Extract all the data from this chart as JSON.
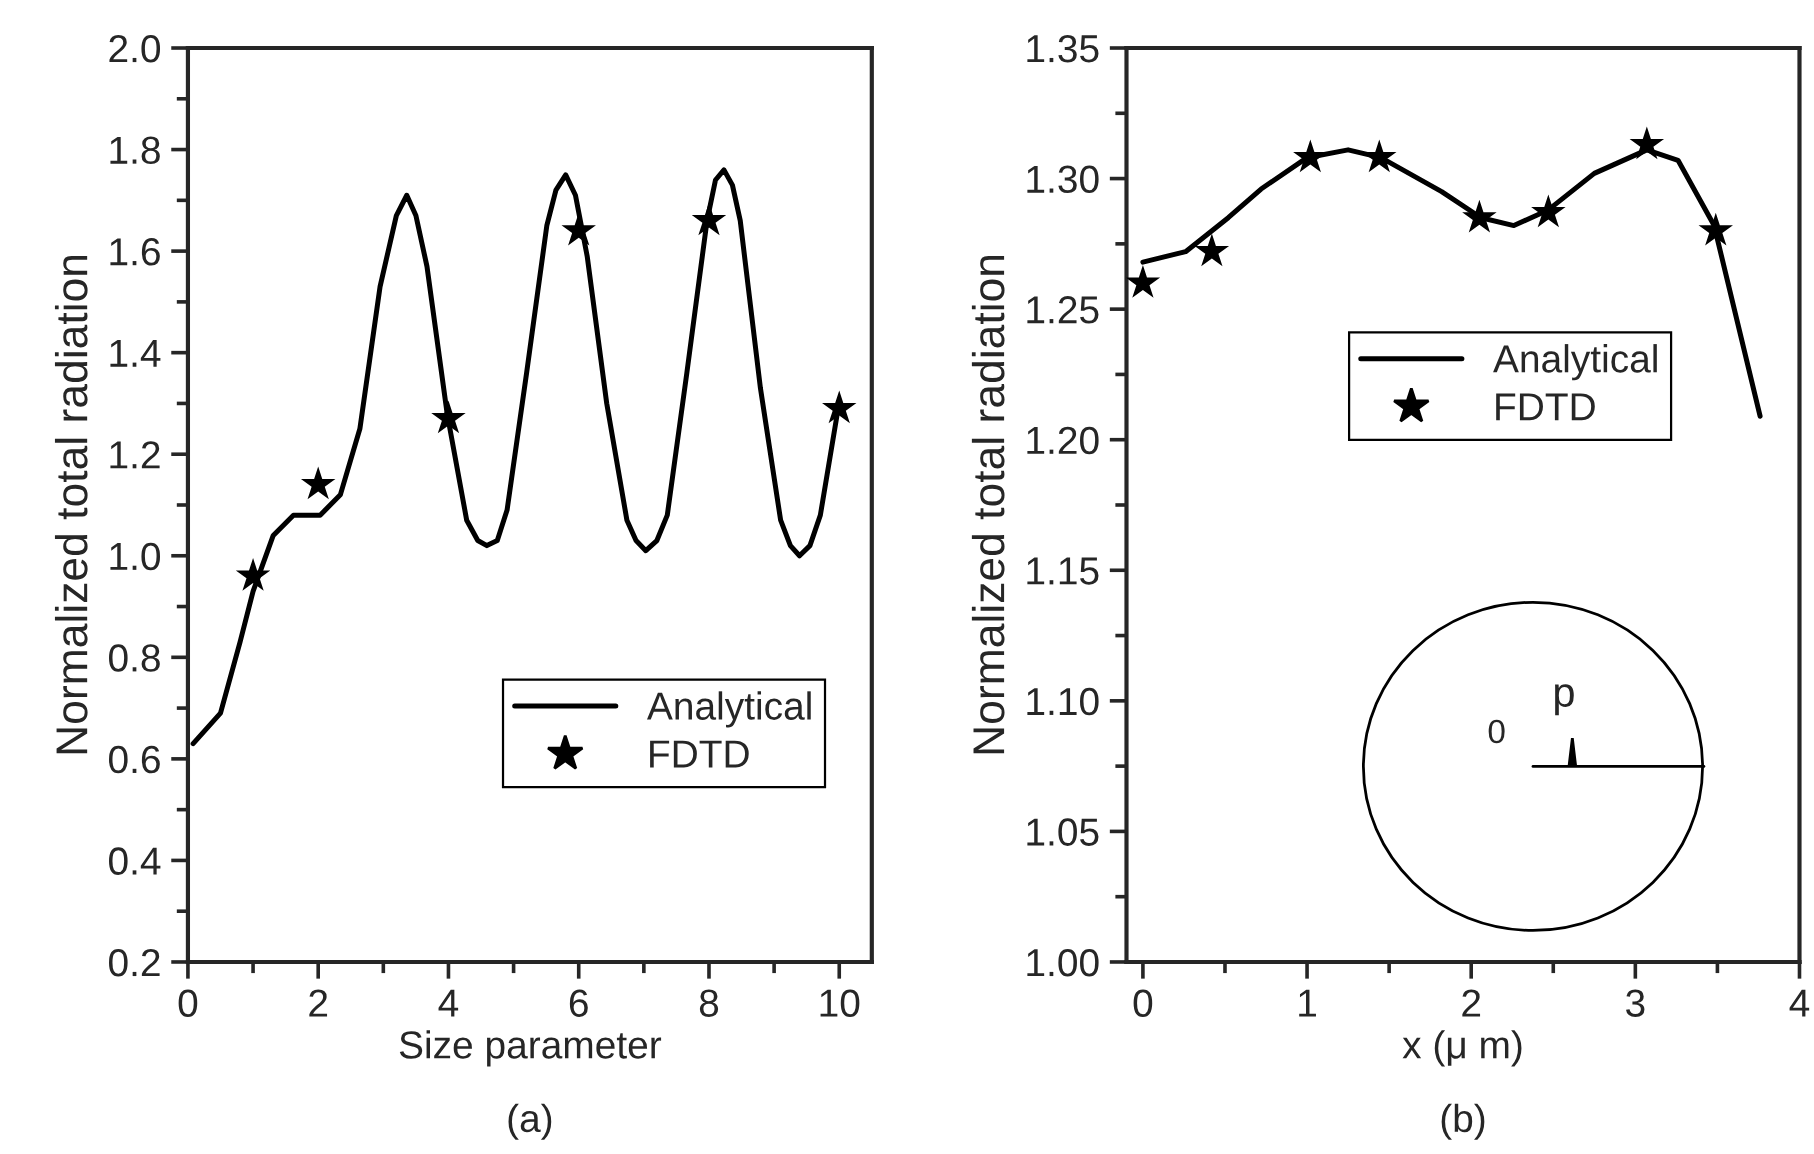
{
  "chart_data": [
    {
      "type": "line",
      "title": "(a)",
      "xlabel": "Size parameter",
      "ylabel": "Normalized total radiation",
      "xlim": [
        0,
        10.5
      ],
      "xticks": [
        0,
        2,
        4,
        6,
        8,
        10
      ],
      "ylim": [
        0.2,
        2.0
      ],
      "yticks": [
        0.2,
        0.4,
        0.6,
        0.8,
        {
          "value": 1.0,
          "label": "1.0"
        },
        1.2,
        1.4,
        1.6,
        1.8,
        {
          "value": 2.0,
          "label": "2.0"
        }
      ],
      "grid": false,
      "legend": "bottom right",
      "series": [
        {
          "name": "Analytical",
          "line_style": "solid",
          "color": "#000000",
          "x": [
            0.08,
            0.5,
            0.8,
            1.0,
            1.31,
            1.62,
            2.03,
            2.34,
            2.64,
            2.95,
            3.2,
            3.36,
            3.5,
            3.67,
            3.98,
            4.28,
            4.45,
            4.59,
            4.75,
            4.9,
            5.2,
            5.51,
            5.65,
            5.8,
            5.95,
            6.13,
            6.43,
            6.74,
            6.88,
            7.03,
            7.2,
            7.36,
            7.66,
            7.97,
            8.1,
            8.23,
            8.36,
            8.48,
            8.79,
            9.1,
            9.25,
            9.39,
            9.55,
            9.71,
            9.97
          ],
          "values": [
            0.63,
            0.69,
            0.83,
            0.93,
            1.04,
            1.08,
            1.08,
            1.12,
            1.25,
            1.53,
            1.67,
            1.71,
            1.67,
            1.57,
            1.28,
            1.07,
            1.03,
            1.02,
            1.03,
            1.09,
            1.36,
            1.65,
            1.72,
            1.75,
            1.71,
            1.59,
            1.3,
            1.07,
            1.03,
            1.01,
            1.03,
            1.08,
            1.36,
            1.66,
            1.74,
            1.76,
            1.73,
            1.66,
            1.33,
            1.07,
            1.02,
            1.0,
            1.02,
            1.08,
            1.28
          ]
        },
        {
          "name": "FDTD",
          "type": "scatter",
          "marker": "star",
          "color": "#000000",
          "x": [
            1,
            2,
            4,
            6,
            8,
            10
          ],
          "values": [
            0.96,
            1.14,
            1.27,
            1.64,
            1.66,
            1.29
          ]
        }
      ]
    },
    {
      "type": "line",
      "title": "(b)",
      "xlabel": "x (μ m)",
      "ylabel": "Normalized total radiation",
      "xlim": [
        -0.1,
        4
      ],
      "xticks": [
        0,
        1,
        2,
        3,
        4
      ],
      "ylim": [
        1.0,
        1.35
      ],
      "yticks": [
        {
          "value": 1.0,
          "label": "1.00"
        },
        1.05,
        {
          "value": 1.1,
          "label": "1.10"
        },
        1.15,
        {
          "value": 1.2,
          "label": "1.20"
        },
        1.25,
        {
          "value": 1.3,
          "label": "1.30"
        },
        1.35
      ],
      "grid": false,
      "legend": "center",
      "annotations": [
        "0",
        "p"
      ],
      "series": [
        {
          "name": "Analytical",
          "line_style": "solid",
          "color": "#000000",
          "x": [
            0,
            0.26,
            0.52,
            0.72,
            1.0,
            1.25,
            1.45,
            1.82,
            2.06,
            2.26,
            2.47,
            2.75,
            3.07,
            3.26,
            3.48,
            3.76
          ],
          "values": [
            1.268,
            1.272,
            1.285,
            1.296,
            1.308,
            1.311,
            1.308,
            1.295,
            1.285,
            1.282,
            1.288,
            1.302,
            1.311,
            1.307,
            1.282,
            1.209
          ]
        },
        {
          "name": "FDTD",
          "type": "scatter",
          "marker": "star",
          "color": "#000000",
          "x": [
            0,
            0.42,
            1.02,
            1.44,
            2.05,
            2.47,
            3.07,
            3.49
          ],
          "values": [
            1.26,
            1.272,
            1.308,
            1.308,
            1.285,
            1.287,
            1.313,
            1.28
          ]
        }
      ]
    }
  ]
}
